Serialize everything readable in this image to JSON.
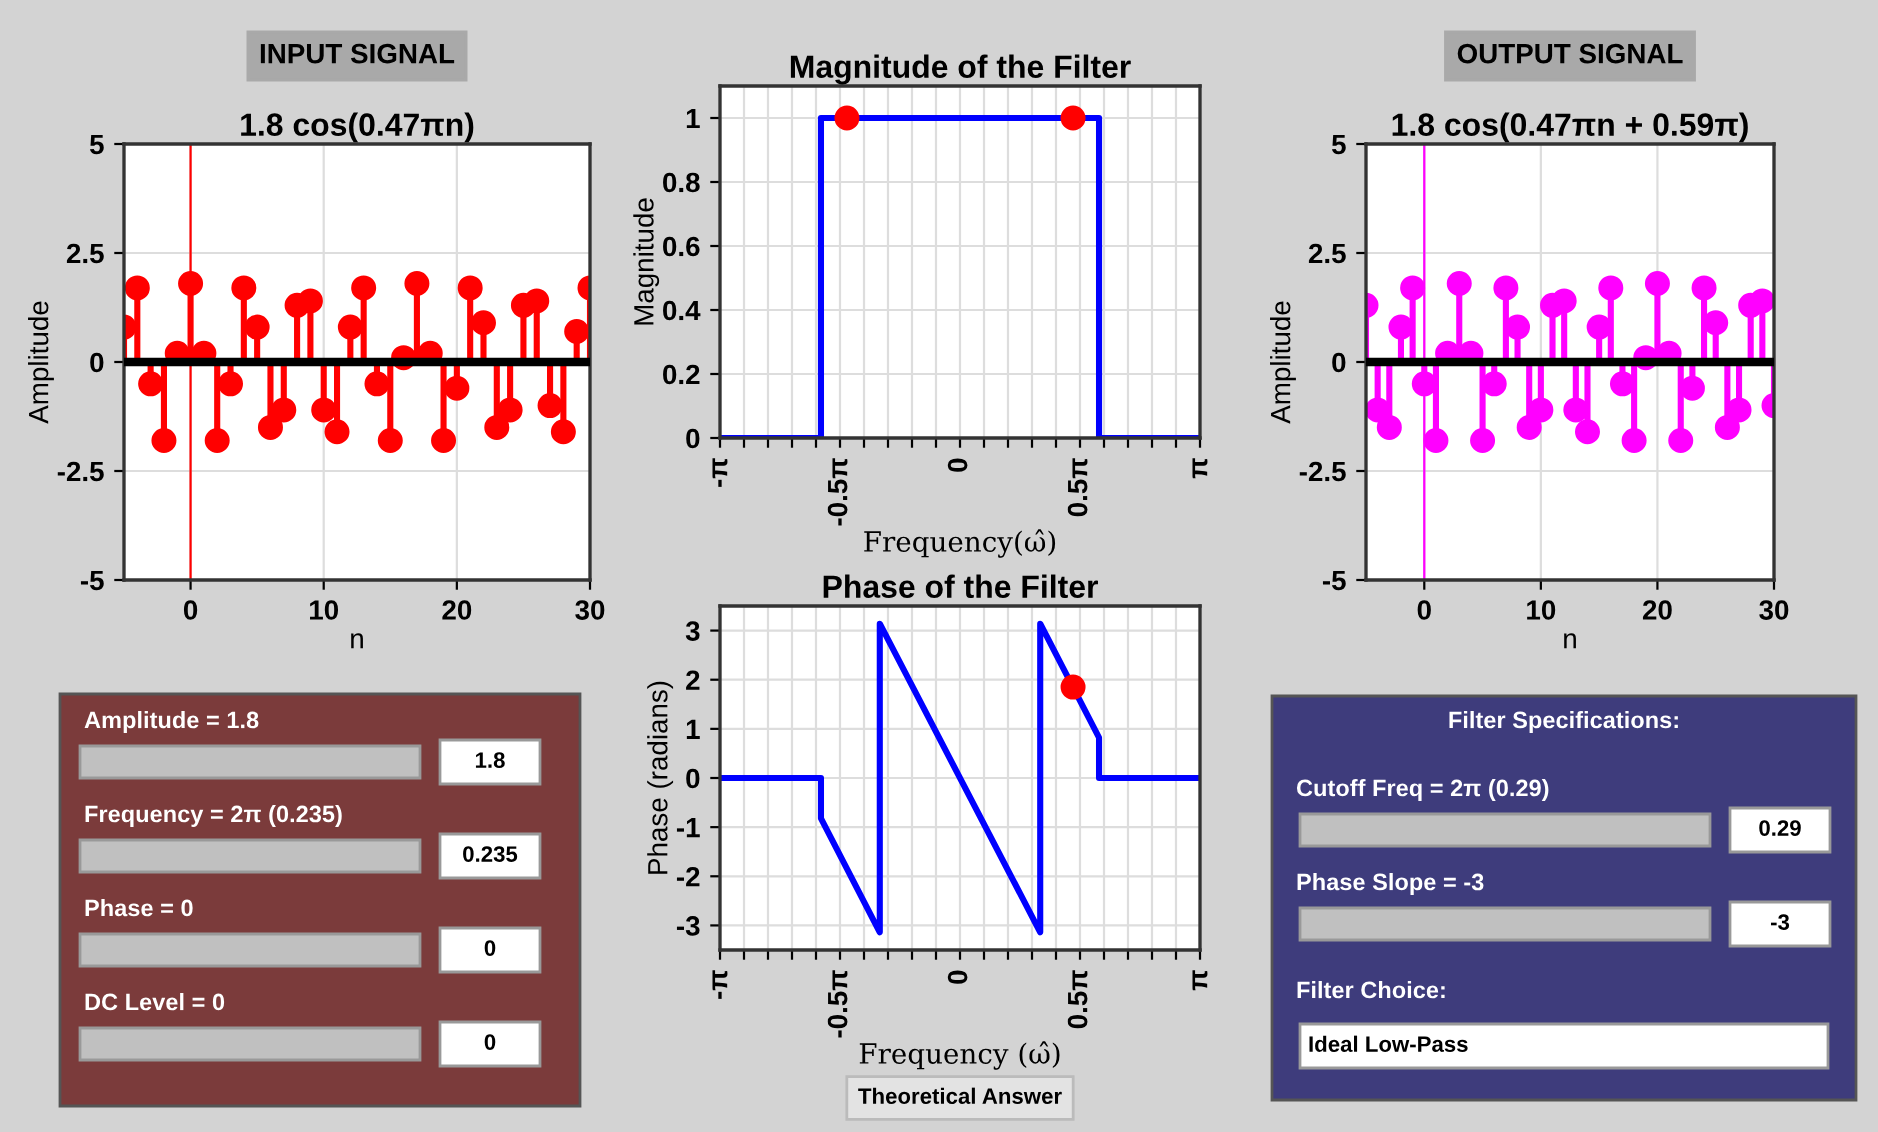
{
  "chart_data": [
    {
      "type": "lollipop",
      "title": "1.8 cos(0.47πn)",
      "xlabel": "n",
      "ylabel": "Amplitude",
      "annotations": [
        "INPUT SIGNAL"
      ],
      "x": [
        -5,
        -4,
        -3,
        -2,
        -1,
        0,
        1,
        2,
        3,
        4,
        5,
        6,
        7,
        8,
        9,
        10,
        11,
        12,
        13,
        14,
        15,
        16,
        17,
        18,
        19,
        20,
        21,
        22,
        23,
        24,
        25,
        26,
        27,
        28,
        29,
        30
      ],
      "series": [
        {
          "color": "#ff0000",
          "values": [
            0.8,
            1.7,
            -0.5,
            -1.8,
            0.2,
            1.8,
            0.2,
            -1.8,
            -0.5,
            1.7,
            0.8,
            -1.5,
            -1.1,
            1.3,
            1.4,
            -1.1,
            -1.6,
            0.8,
            1.7,
            -0.5,
            -1.8,
            0.1,
            1.8,
            0.2,
            -1.8,
            -0.6,
            1.7,
            0.9,
            -1.5,
            -1.1,
            1.3,
            1.4,
            -1.0,
            -1.6,
            0.7,
            1.7
          ]
        }
      ],
      "ref_lines": [
        {
          "axis": "x",
          "value": 0,
          "color": "#ff0000"
        },
        {
          "axis": "y",
          "value": 0,
          "color": "#000000"
        }
      ],
      "xlim": [
        -5,
        30
      ],
      "xticks": [
        0,
        10,
        20,
        30
      ],
      "ylim": [
        -5,
        5
      ],
      "yticks": [
        -5,
        -2.5,
        0,
        2.5,
        5
      ],
      "grid": true,
      "marker": "circle"
    },
    {
      "type": "line",
      "title": "Magnitude of the Filter",
      "xlabel": "Frequency(ω̂)",
      "ylabel": "Magnitude",
      "series": [
        {
          "type": "line",
          "color": "#0000ff",
          "x": [
            -3.1416,
            -1.82,
            -1.82,
            1.82,
            1.82,
            3.1416
          ],
          "values": [
            0,
            0,
            1,
            1,
            0,
            0
          ]
        },
        {
          "type": "scatter",
          "color": "#ff0000",
          "marker": "circle",
          "x": [
            -1.48,
            1.48
          ],
          "values": [
            1,
            1
          ]
        }
      ],
      "xlim": [
        -3.1416,
        3.1416
      ],
      "xticks": [
        {
          "value": -3.1416,
          "label": "-π"
        },
        {
          "value": -2.8274,
          "label": null
        },
        {
          "value": -2.5133,
          "label": null
        },
        {
          "value": -2.1991,
          "label": null
        },
        {
          "value": -1.885,
          "label": null
        },
        {
          "value": -1.5708,
          "label": "-0.5π"
        },
        {
          "value": -1.2566,
          "label": null
        },
        {
          "value": -0.9425,
          "label": null
        },
        {
          "value": -0.6283,
          "label": null
        },
        {
          "value": -0.3142,
          "label": null
        },
        0,
        {
          "value": 0.3142,
          "label": null
        },
        {
          "value": 0.6283,
          "label": null
        },
        {
          "value": 0.9425,
          "label": null
        },
        {
          "value": 1.2566,
          "label": null
        },
        {
          "value": 1.5708,
          "label": "0.5π"
        },
        {
          "value": 1.885,
          "label": null
        },
        {
          "value": 2.1991,
          "label": null
        },
        {
          "value": 2.5133,
          "label": null
        },
        {
          "value": 2.8274,
          "label": null
        },
        {
          "value": 3.1416,
          "label": "π"
        }
      ],
      "ylim": [
        0,
        1.1
      ],
      "yticks": [
        0,
        0.2,
        0.4,
        0.6,
        0.8,
        1
      ],
      "grid": true
    },
    {
      "type": "line",
      "title": "Phase of the Filter",
      "xlabel": "Frequency (ω̂)",
      "ylabel": "Phase (radians)",
      "annotations": [
        "Theoretical Answer"
      ],
      "series": [
        {
          "type": "line",
          "color": "#0000ff",
          "x": [
            -3.1416,
            -1.82,
            -1.82,
            -1.05,
            -1.05,
            1.05,
            1.05,
            1.82,
            1.82,
            3.1416
          ],
          "values": [
            0,
            0,
            -0.82,
            -3.14,
            3.14,
            -3.14,
            3.14,
            0.82,
            0,
            0
          ]
        },
        {
          "type": "scatter",
          "color": "#ff0000",
          "marker": "circle",
          "x": [
            1.48
          ],
          "values": [
            1.85
          ]
        }
      ],
      "xlim": [
        -3.1416,
        3.1416
      ],
      "xticks": [
        {
          "value": -3.1416,
          "label": "-π"
        },
        {
          "value": -2.8274,
          "label": null
        },
        {
          "value": -2.5133,
          "label": null
        },
        {
          "value": -2.1991,
          "label": null
        },
        {
          "value": -1.885,
          "label": null
        },
        {
          "value": -1.5708,
          "label": "-0.5π"
        },
        {
          "value": -1.2566,
          "label": null
        },
        {
          "value": -0.9425,
          "label": null
        },
        {
          "value": -0.6283,
          "label": null
        },
        {
          "value": -0.3142,
          "label": null
        },
        0,
        {
          "value": 0.3142,
          "label": null
        },
        {
          "value": 0.6283,
          "label": null
        },
        {
          "value": 0.9425,
          "label": null
        },
        {
          "value": 1.2566,
          "label": null
        },
        {
          "value": 1.5708,
          "label": "0.5π"
        },
        {
          "value": 1.885,
          "label": null
        },
        {
          "value": 2.1991,
          "label": null
        },
        {
          "value": 2.5133,
          "label": null
        },
        {
          "value": 2.8274,
          "label": null
        },
        {
          "value": 3.1416,
          "label": "π"
        }
      ],
      "ylim": [
        -3.5,
        3.5
      ],
      "yticks": [
        -3,
        -2,
        -1,
        0,
        1,
        2,
        3
      ],
      "grid": true
    },
    {
      "type": "lollipop",
      "title": "1.8 cos(0.47πn + 0.59π)",
      "xlabel": "n",
      "ylabel": "Amplitude",
      "annotations": [
        "OUTPUT SIGNAL"
      ],
      "x": [
        -5,
        -4,
        -3,
        -2,
        -1,
        0,
        1,
        2,
        3,
        4,
        5,
        6,
        7,
        8,
        9,
        10,
        11,
        12,
        13,
        14,
        15,
        16,
        17,
        18,
        19,
        20,
        21,
        22,
        23,
        24,
        25,
        26,
        27,
        28,
        29,
        30
      ],
      "series": [
        {
          "color": "#ff00ff",
          "values": [
            1.3,
            -1.1,
            -1.5,
            0.8,
            1.7,
            -0.5,
            -1.8,
            0.2,
            1.8,
            0.2,
            -1.8,
            -0.5,
            1.7,
            0.8,
            -1.5,
            -1.1,
            1.3,
            1.4,
            -1.1,
            -1.6,
            0.8,
            1.7,
            -0.5,
            -1.8,
            0.1,
            1.8,
            0.2,
            -1.8,
            -0.6,
            1.7,
            0.9,
            -1.5,
            -1.1,
            1.3,
            1.4,
            -1.0
          ]
        }
      ],
      "ref_lines": [
        {
          "axis": "x",
          "value": 0,
          "color": "#ff00ff"
        },
        {
          "axis": "y",
          "value": 0,
          "color": "#000000"
        }
      ],
      "xlim": [
        -5,
        30
      ],
      "xticks": [
        0,
        10,
        20,
        30
      ],
      "ylim": [
        -5,
        5
      ],
      "yticks": [
        -5,
        -2.5,
        0,
        2.5,
        5
      ],
      "grid": true,
      "marker": "circle"
    },
    {
      "type": "other",
      "annotations": [
        "Amplitude = 1.8",
        "1.8",
        "Frequency = 2π (0.235)",
        "0.235",
        "Phase = 0",
        "0",
        "DC Level = 0",
        "0"
      ]
    },
    {
      "type": "other",
      "title": "Filter Specifications:",
      "annotations": [
        "Cutoff Freq = 2π (0.29)",
        "0.29",
        "Phase Slope = -3",
        "-3",
        "Filter Choice:",
        "Ideal Low-Pass"
      ]
    }
  ]
}
